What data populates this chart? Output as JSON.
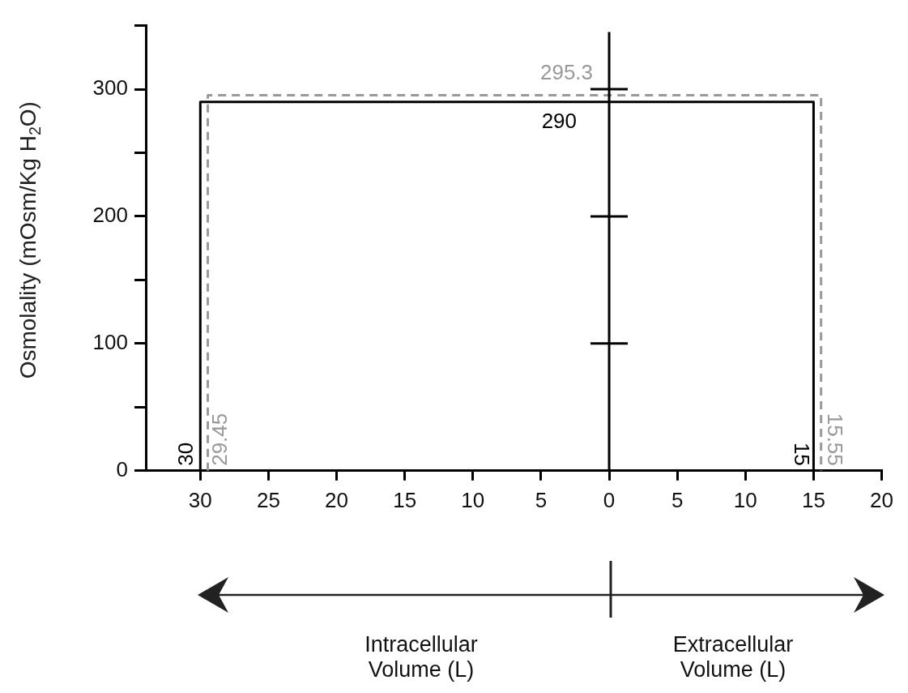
{
  "chart_data": {
    "type": "line",
    "ylabel": "Osmolality (mOsm/Kg H$_{2}$O)",
    "xlim": [
      -34,
      20
    ],
    "xticks": [
      {
        "value": -30,
        "label": "30"
      },
      {
        "value": -25,
        "label": "25"
      },
      {
        "value": -20,
        "label": "20"
      },
      {
        "value": -15,
        "label": "15"
      },
      {
        "value": -10,
        "label": "10"
      },
      {
        "value": -5,
        "label": "5"
      },
      0,
      5,
      10,
      15,
      20
    ],
    "ylim": [
      0,
      350
    ],
    "yticks": [
      0,
      {
        "value": 50,
        "label": null
      },
      100,
      {
        "value": 150,
        "label": null
      },
      200,
      {
        "value": 250,
        "label": null
      },
      300,
      {
        "value": 350,
        "label": null
      }
    ],
    "marker": "none",
    "series": [
      {
        "color": "#000000",
        "line_style": "solid",
        "x": [
          -30,
          -30,
          15,
          15
        ],
        "values": [
          0,
          290,
          290,
          0
        ]
      },
      {
        "color": "#999999",
        "line_style": "dashed",
        "x": [
          -29.45,
          -29.45,
          15.55,
          15.55
        ],
        "values": [
          0,
          295.3,
          295.3,
          0
        ]
      }
    ],
    "ref_lines": [
      {
        "axis": "x",
        "value": 0,
        "color": "#000000"
      }
    ],
    "annotations": [
      {
        "text": "290",
        "x": 0,
        "y": 290
      },
      {
        "text": "295.3",
        "x": 0,
        "y": 295.3
      },
      {
        "text": "30",
        "x": -30,
        "y": 0
      },
      {
        "text": "29.45",
        "x": -29.45,
        "y": 0
      },
      {
        "text": "15",
        "x": 15,
        "y": 0
      },
      {
        "text": "15.55",
        "x": 15.55,
        "y": 0
      },
      "Intracellular Volume (L)",
      "Extracellular Volume (L)"
    ]
  }
}
